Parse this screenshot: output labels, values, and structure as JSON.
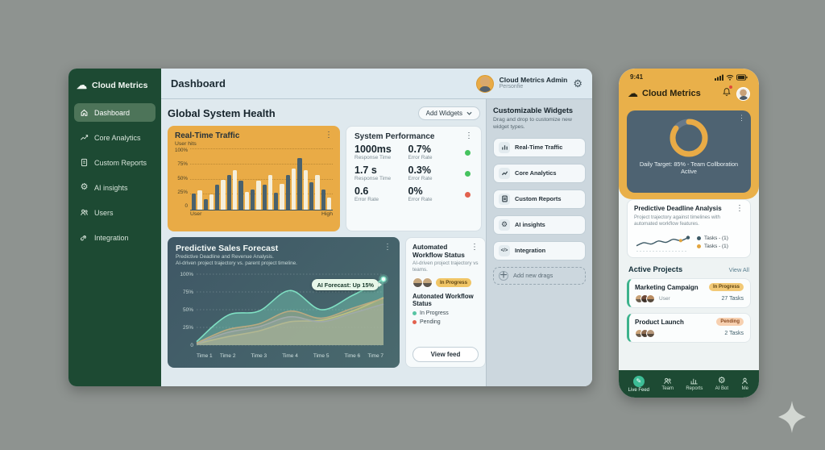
{
  "colors": {
    "canvas_bg": "#8e9390",
    "sidebar_green": "#1d4a33",
    "sidebar_active_green": "#4d7459",
    "amber": "#e9ab46",
    "teal_accent": "#7fe0c3",
    "status_green": "#46c35f",
    "status_red": "#e2614e",
    "forecast_card_bg": "#42596a",
    "panel_bg": "#ccd7de"
  },
  "sidebar": {
    "brand": "Cloud Metrics",
    "items": [
      {
        "label": "Dashboard",
        "icon": "home-icon",
        "active": true
      },
      {
        "label": "Core Analytics",
        "icon": "trend-icon",
        "active": false
      },
      {
        "label": "Custom Reports",
        "icon": "document-icon",
        "active": false
      },
      {
        "label": "AI insights",
        "icon": "gear-icon",
        "active": false
      },
      {
        "label": "Users",
        "icon": "users-icon",
        "active": false
      },
      {
        "label": "Integration",
        "icon": "link-icon",
        "active": false
      }
    ]
  },
  "header": {
    "title": "Dashboard",
    "user_name": "Cloud Metrics Admin",
    "user_sub": "Personfie",
    "gear_icon": "settings-gear-icon"
  },
  "main": {
    "section_title": "Global System Health",
    "add_widgets": "Add Widgets",
    "traffic": {
      "title": "Real-Time Traffic",
      "subtitle": "User hits"
    },
    "performance": {
      "title": "System Performance",
      "rows": [
        {
          "value": "1000ms",
          "label": "Response Time",
          "value2": "0.7%",
          "label2": "Error Rate",
          "dot": "#46c35f"
        },
        {
          "value": "1.7 s",
          "label": "Response Time",
          "value2": "0.3%",
          "label2": "Error Rate",
          "dot": "#46c35f"
        },
        {
          "value": "0.6",
          "label": "Error Rate",
          "value2": "0%",
          "label2": "Error Rate",
          "dot": "#e2614e"
        }
      ]
    },
    "forecast": {
      "title": "Predictive Sales Forecast",
      "desc1": "Predictive Deadline and Revenue Analysis.",
      "desc2": "AI-driven project trajectory vs. parent project timeline.",
      "badge": "AI Forecast: Up 15%"
    },
    "workflow": {
      "title": "Automated Workflow Status",
      "desc": "AI-driven project trajectory vs teams.",
      "badge": "In Progress",
      "badge_bg": "#f0c566",
      "badge_color": "#5f4514",
      "caption": "Autonated Workflow Status",
      "legend": [
        {
          "label": "In Progress",
          "dot": "#57c4a3"
        },
        {
          "label": "Pending",
          "dot": "#e2614e"
        }
      ],
      "button": "View feed"
    }
  },
  "panel": {
    "title": "Customizable Widgets",
    "desc": "Drag and drop to customize new widget types.",
    "items": [
      {
        "label": "Real-Time Traffic",
        "icon": "bar-chart-icon"
      },
      {
        "label": "Core Analytics",
        "icon": "trend-icon"
      },
      {
        "label": "Custom Reports",
        "icon": "document-icon"
      },
      {
        "label": "AI insights",
        "icon": "gear-icon"
      },
      {
        "label": "Integration",
        "icon": "code-icon"
      }
    ],
    "add_label": "Add new drags"
  },
  "phone": {
    "time": "9:41",
    "brand": "Cloud Metrics",
    "daily": {
      "caption": "Daily Target: 85% - Team Collboration Active",
      "percent": 85
    },
    "deadline": {
      "title": "Predictive Deadline Analysis",
      "desc": "Project trajectory against timelines with automated workflow features.",
      "legend": [
        {
          "label": "Tasks - (1)",
          "dot": "#3d5a66"
        },
        {
          "label": "Tasks - (1)",
          "dot": "#e2a53f"
        }
      ]
    },
    "projects_title": "Active Projects",
    "view_all": "View All",
    "projects": [
      {
        "name": "Marketing Campaign",
        "badge": "In Progress",
        "badge_bg": "#f2c976",
        "badge_color": "#5f4514",
        "sub": "User",
        "tasks": "27 Tasks"
      },
      {
        "name": "Product Launch",
        "badge": "Pending",
        "badge_bg": "#f7d0b0",
        "badge_color": "#8a4b22",
        "sub": "",
        "tasks": "2 Tasks"
      }
    ],
    "nav": [
      {
        "label": "Live Feed",
        "icon": "pencil-icon",
        "active": true
      },
      {
        "label": "Team",
        "icon": "users-icon",
        "active": false
      },
      {
        "label": "Reports",
        "icon": "bar-chart-icon",
        "active": false
      },
      {
        "label": "AI Bot",
        "icon": "gear-icon",
        "active": false
      },
      {
        "label": "Me",
        "icon": "person-icon",
        "active": false
      }
    ]
  },
  "chart_data": [
    {
      "id": "realtime-traffic",
      "type": "bar",
      "title": "Real-Time Traffic",
      "ylabel": "User hits",
      "values": [
        27,
        32,
        18,
        25,
        42,
        50,
        57,
        65,
        48,
        30,
        33,
        48,
        42,
        57,
        28,
        43,
        57,
        68,
        85,
        65,
        45,
        57,
        33,
        20
      ],
      "bar_colors": [
        "#49616d",
        "#f5efdb"
      ],
      "ylim": [
        0,
        100
      ],
      "yticks": [
        "100%",
        "75%",
        "50%",
        "25%",
        "0"
      ],
      "x_left_label": "User",
      "x_right_label": "High",
      "grid": true
    },
    {
      "id": "sales-forecast",
      "type": "area",
      "title": "Predictive Sales Forecast",
      "x": [
        "Time 1",
        "Time 2",
        "Time 3",
        "Time 4",
        "Time 5",
        "Time 6",
        "Time 7"
      ],
      "ylim": [
        0,
        100
      ],
      "yticks": [
        "100%",
        "75%",
        "50%",
        "25%",
        "0"
      ],
      "annotation": "AI Forecast: Up 15%",
      "grid": true,
      "series": [
        {
          "name": "baseline",
          "color": "#e8c45c",
          "values": [
            2,
            12,
            20,
            33,
            35,
            48,
            67
          ]
        },
        {
          "name": "revenue",
          "color": "#9b8cc4",
          "values": [
            2,
            18,
            26,
            40,
            33,
            45,
            58
          ]
        },
        {
          "name": "parent-timeline",
          "color": "#e08a5a",
          "values": [
            3,
            22,
            30,
            48,
            38,
            52,
            66
          ]
        },
        {
          "name": "ai-trajectory",
          "color": "#7fe0c3",
          "values": [
            5,
            42,
            48,
            77,
            50,
            70,
            93
          ]
        }
      ]
    },
    {
      "id": "daily-target-donut",
      "type": "pie",
      "values": [
        85,
        15
      ],
      "labels": [
        "Complete",
        "Remaining"
      ],
      "colors": [
        "#e9ab46",
        "#67798a"
      ],
      "title": "Daily Target: 85%"
    },
    {
      "id": "deadline-sparkline",
      "type": "line",
      "values": [
        30,
        48,
        40,
        58,
        50,
        68,
        60,
        78
      ],
      "color": "#3d5a66",
      "dot_colors": [
        "#e2a53f",
        "#3d5a66"
      ]
    }
  ]
}
